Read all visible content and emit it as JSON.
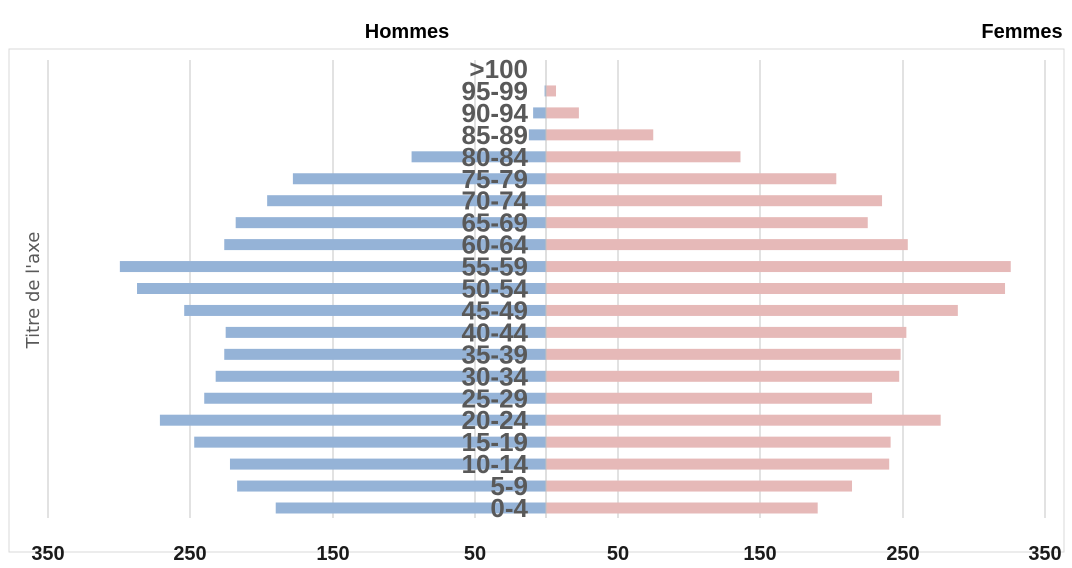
{
  "chart_data": {
    "type": "bar",
    "orientation": "horizontal",
    "layout": "population-pyramid",
    "legend": [
      "Hommes",
      "Femmes"
    ],
    "ylabel": "Titre de l'axe",
    "xtick_labels": [
      "350",
      "250",
      "150",
      "50",
      "50",
      "150",
      "250",
      "350"
    ],
    "xlim_left": [
      0,
      350
    ],
    "xlim_right": [
      0,
      350
    ],
    "grid": true,
    "categories": [
      "0-4",
      "5-9",
      "10-14",
      "15-19",
      "20-24",
      "25-29",
      "30-34",
      "35-39",
      "40-44",
      "45-49",
      "50-54",
      "55-59",
      "60-64",
      "65-69",
      "70-74",
      "75-79",
      "80-84",
      "85-89",
      "90-94",
      "95-99",
      ">100"
    ],
    "series": [
      {
        "name": "Hommes",
        "color": "#95b3d7",
        "values": [
          189,
          216,
          221,
          246,
          270,
          239,
          231,
          225,
          224,
          253,
          286,
          298,
          225,
          217,
          195,
          177,
          94,
          12,
          9,
          1,
          0
        ]
      },
      {
        "name": "Femmes",
        "color": "#e6b9b8",
        "values": [
          190,
          214,
          240,
          241,
          276,
          228,
          247,
          248,
          252,
          288,
          321,
          325,
          253,
          225,
          235,
          203,
          136,
          75,
          23,
          7,
          0
        ]
      }
    ]
  }
}
